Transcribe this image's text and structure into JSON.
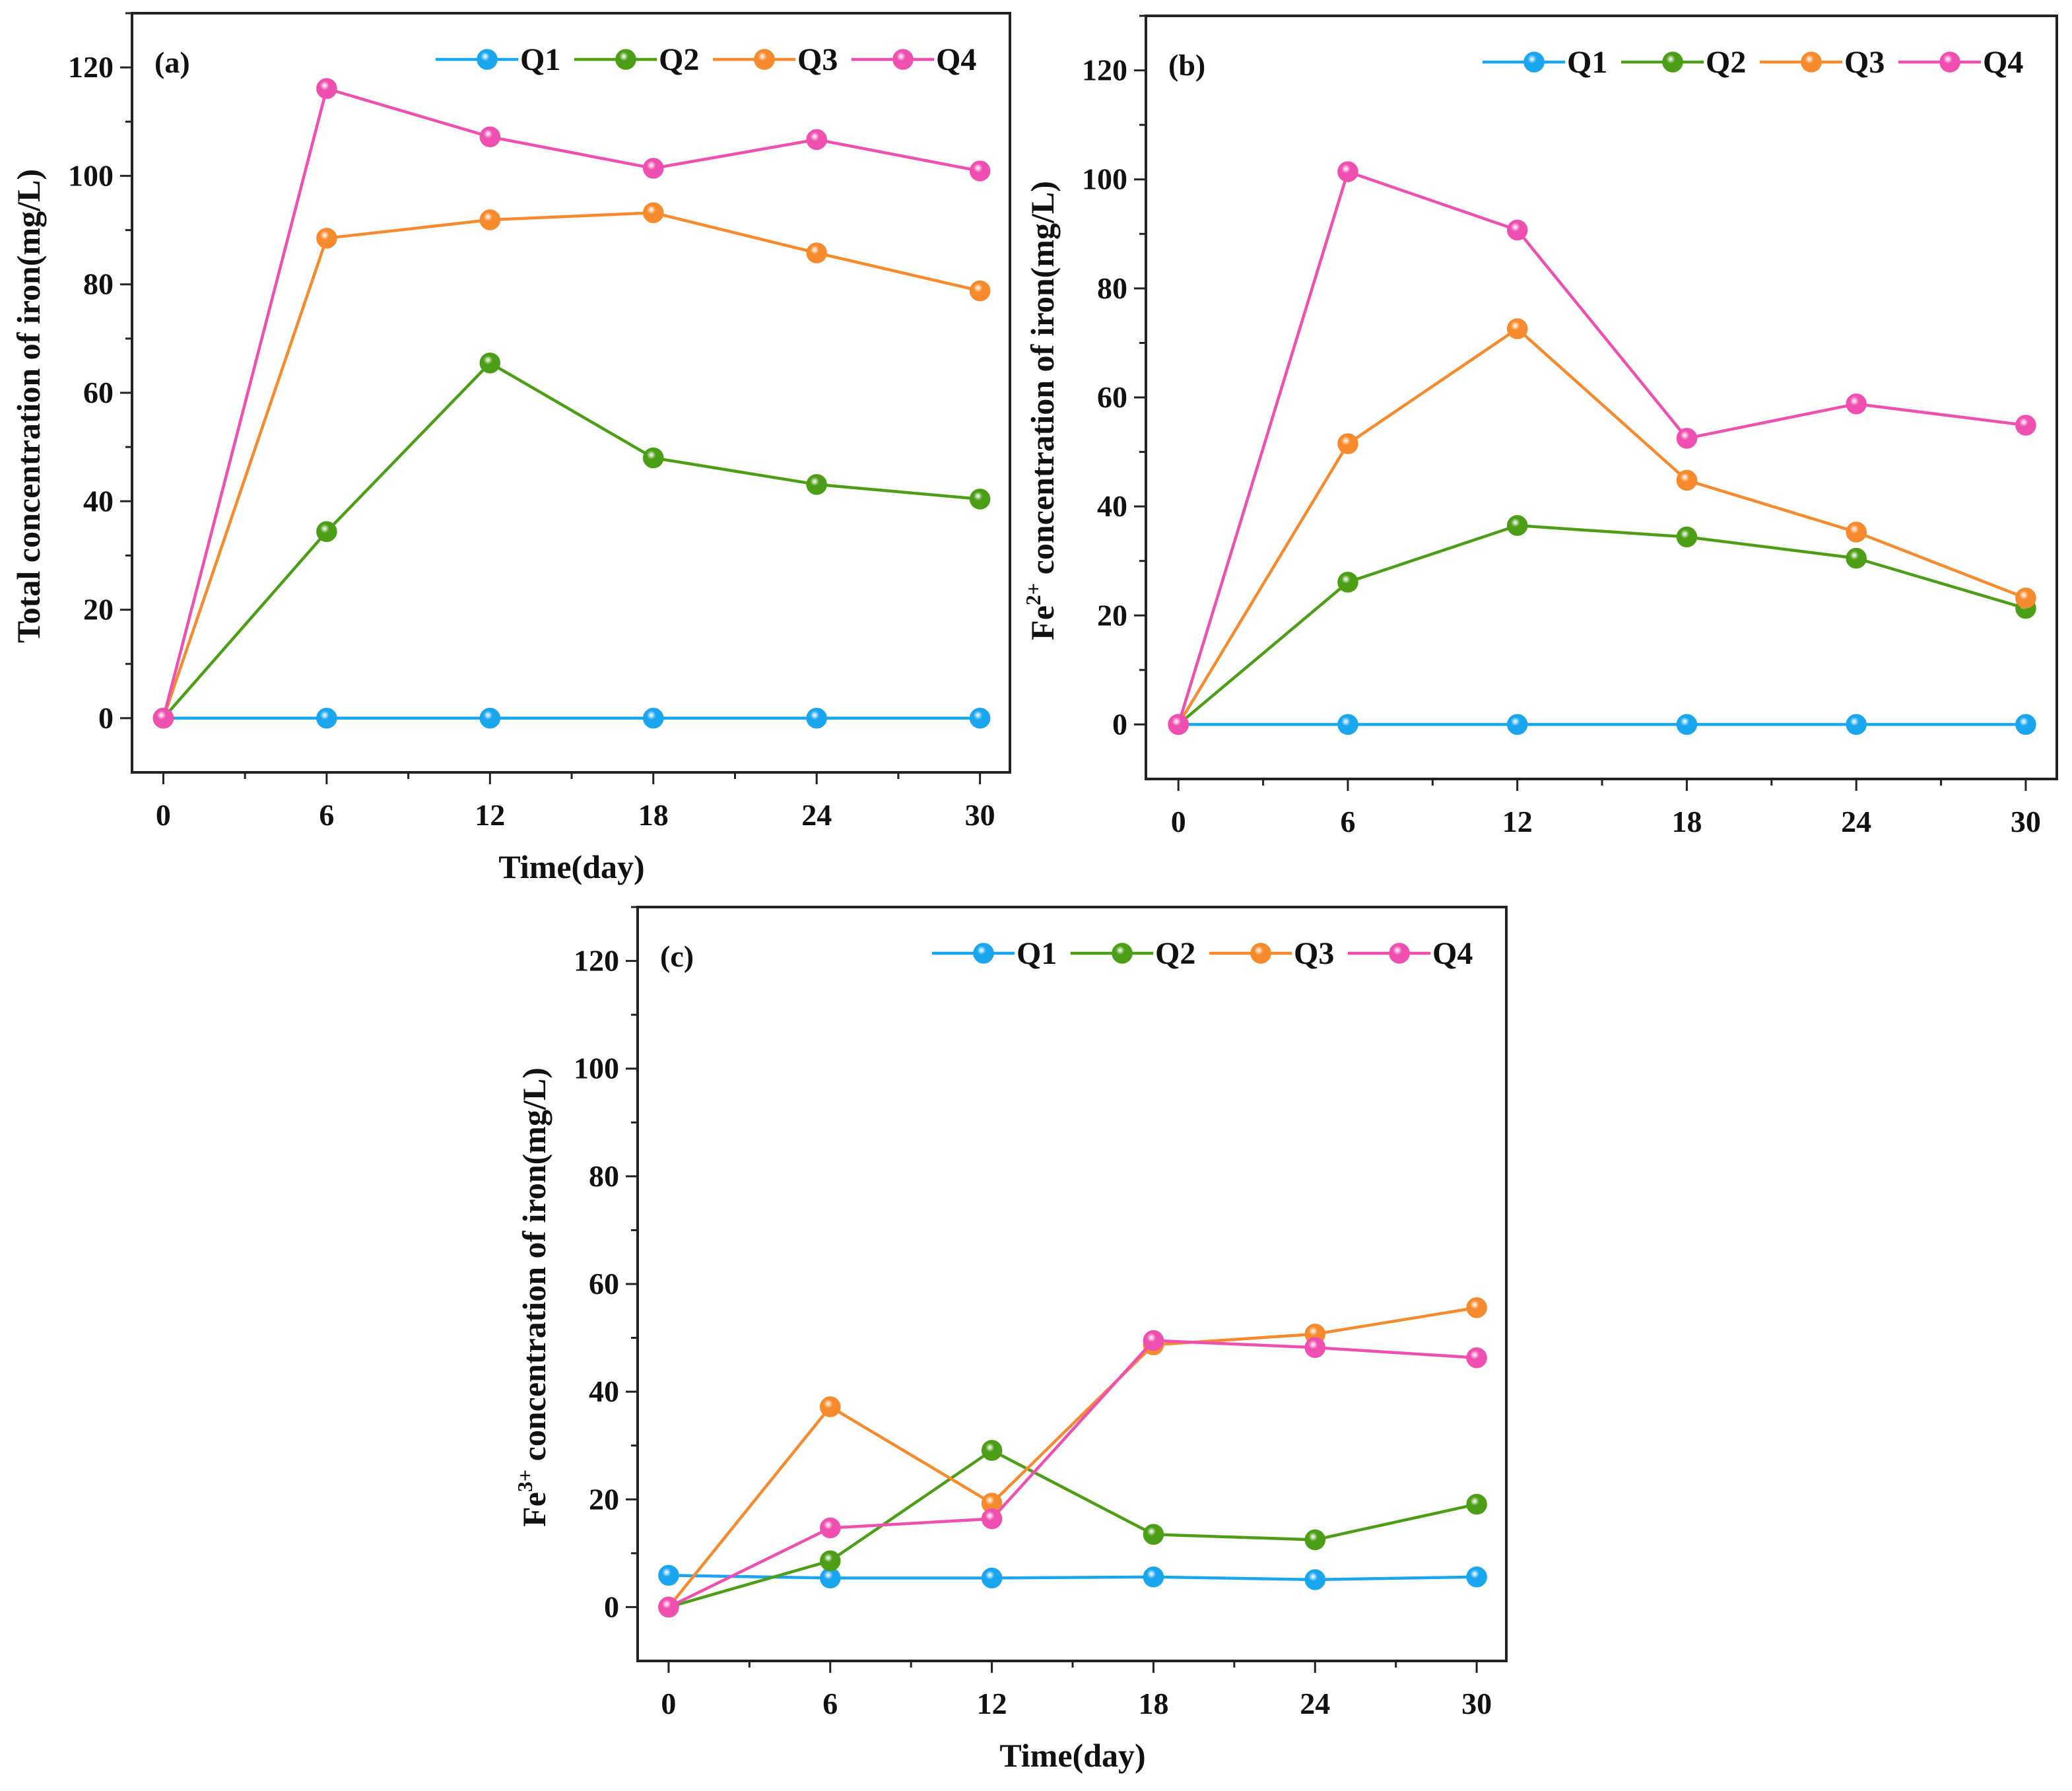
{
  "colors": {
    "Q1": "#1aa6ee",
    "Q2": "#4c9e16",
    "Q3": "#f78a2c",
    "Q4": "#f04fb2"
  },
  "chart_data": [
    {
      "type": "line",
      "panel_label": "(a)",
      "xlabel": "Time(day)",
      "ylabel_parts": [
        "Total concentration of iron(mg/L)"
      ],
      "x": [
        0,
        6,
        12,
        18,
        24,
        30
      ],
      "xticks": [
        0,
        6,
        12,
        18,
        24,
        30
      ],
      "yticks": [
        0,
        20,
        40,
        60,
        80,
        100,
        120
      ],
      "xlim": [
        -1.15,
        31.1
      ],
      "ylim": [
        -10,
        130
      ],
      "legend": "top-right",
      "series": [
        {
          "name": "Q1",
          "values": [
            0,
            0,
            0,
            0,
            0,
            0
          ]
        },
        {
          "name": "Q2",
          "values": [
            0,
            34.4,
            65.5,
            48.0,
            43.1,
            40.4
          ]
        },
        {
          "name": "Q3",
          "values": [
            0,
            88.5,
            91.9,
            93.2,
            85.8,
            78.8
          ]
        },
        {
          "name": "Q4",
          "values": [
            0,
            116.1,
            107.2,
            101.4,
            106.7,
            100.9
          ]
        }
      ]
    },
    {
      "type": "line",
      "panel_label": "(b)",
      "xlabel": "",
      "ylabel_parts": [
        "Fe",
        "2+",
        " concentration of iron(mg/L)"
      ],
      "x": [
        0,
        6,
        12,
        18,
        24,
        30
      ],
      "xticks": [
        0,
        6,
        12,
        18,
        24,
        30
      ],
      "yticks": [
        0,
        20,
        40,
        60,
        80,
        100,
        120
      ],
      "xlim": [
        -1.15,
        31.1
      ],
      "ylim": [
        -10,
        130
      ],
      "legend": "top-right",
      "series": [
        {
          "name": "Q1",
          "values": [
            0,
            0,
            0,
            0,
            0,
            0
          ]
        },
        {
          "name": "Q2",
          "values": [
            0,
            26.1,
            36.5,
            34.4,
            30.5,
            21.3
          ]
        },
        {
          "name": "Q3",
          "values": [
            0,
            51.5,
            72.6,
            44.8,
            35.3,
            23.2
          ]
        },
        {
          "name": "Q4",
          "values": [
            0,
            101.4,
            90.7,
            52.5,
            58.8,
            54.9
          ]
        }
      ]
    },
    {
      "type": "line",
      "panel_label": "(c)",
      "xlabel": "Time(day)",
      "ylabel_parts": [
        "Fe",
        "3+",
        " concentration of iron(mg/L)"
      ],
      "x": [
        0,
        6,
        12,
        18,
        24,
        30
      ],
      "xticks": [
        0,
        6,
        12,
        18,
        24,
        30
      ],
      "yticks": [
        0,
        20,
        40,
        60,
        80,
        100,
        120
      ],
      "xlim": [
        -1.15,
        31.1
      ],
      "ylim": [
        -10,
        130
      ],
      "legend": "top-right",
      "series": [
        {
          "name": "Q1",
          "values": [
            5.9,
            5.4,
            5.4,
            5.6,
            5.1,
            5.6
          ]
        },
        {
          "name": "Q2",
          "values": [
            0,
            8.6,
            29.1,
            13.5,
            12.5,
            19.1
          ]
        },
        {
          "name": "Q3",
          "values": [
            0,
            37.2,
            19.3,
            48.7,
            50.7,
            55.6
          ]
        },
        {
          "name": "Q4",
          "values": [
            0,
            14.7,
            16.4,
            49.5,
            48.2,
            46.3
          ]
        }
      ]
    }
  ]
}
